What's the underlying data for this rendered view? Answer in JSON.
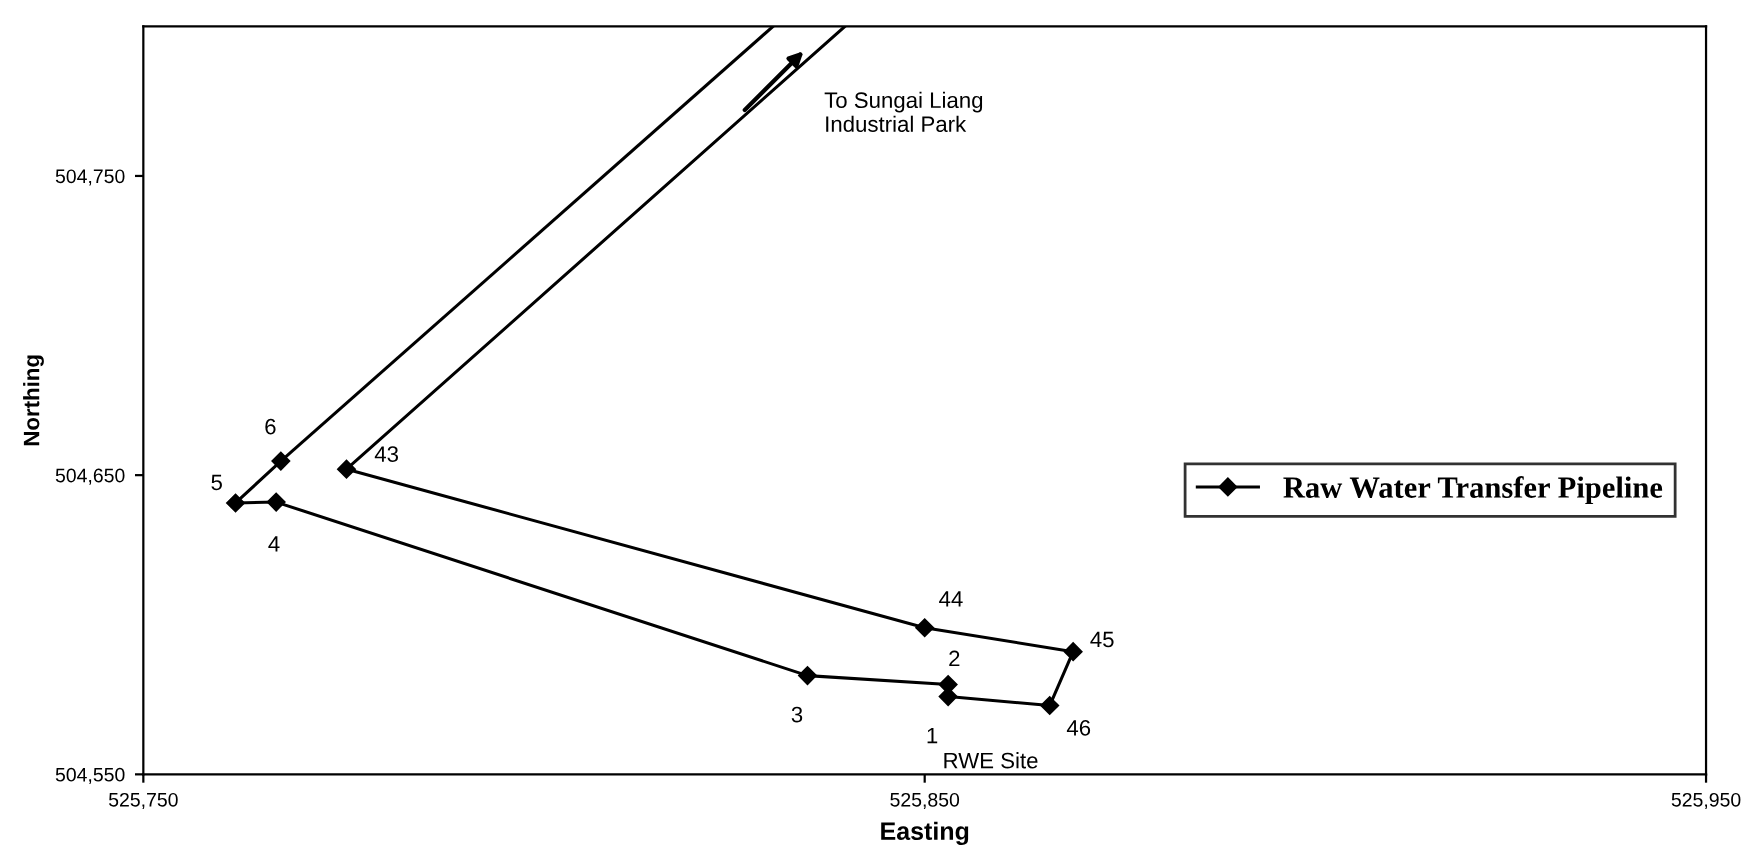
{
  "chart_data": {
    "type": "line",
    "xlabel": "Easting",
    "ylabel": "Northing",
    "series": [
      {
        "name": "Raw Water Transfer Pipeline",
        "color": "#000000",
        "marker": "diamond",
        "x": [
          525767.6,
          525761.8,
          525767,
          525835,
          525853,
          525853,
          525866,
          525869,
          525850,
          525776
        ],
        "values": [
          504654.7,
          504640.7,
          504641,
          504583,
          504580,
          504576,
          504573,
          504591,
          504599,
          504652
        ]
      },
      {
        "color": "#000000",
        "marker": "none",
        "x": [
          525830.6,
          525767.6
        ],
        "values": [
          504800,
          504654.7
        ]
      },
      {
        "color": "#000000",
        "marker": "none",
        "x": [
          525776,
          525839.8
        ],
        "values": [
          504652,
          504800
        ]
      }
    ],
    "annotations": [
      {
        "text": "6",
        "x": 525767.6,
        "y": 504654.7
      },
      {
        "text": "5",
        "x": 525761.8,
        "y": 504640.7
      },
      {
        "text": "4",
        "x": 525767,
        "y": 504641
      },
      {
        "text": "3",
        "x": 525835,
        "y": 504583
      },
      {
        "text": "2",
        "x": 525853,
        "y": 504580
      },
      {
        "text": "1",
        "x": 525853,
        "y": 504576
      },
      {
        "text": "46",
        "x": 525866,
        "y": 504573
      },
      {
        "text": "45",
        "x": 525869,
        "y": 504591
      },
      {
        "text": "44",
        "x": 525850,
        "y": 504599
      },
      {
        "text": "43",
        "x": 525776,
        "y": 504652
      },
      {
        "text": "RWE Site",
        "x": 525853,
        "y": 504576
      },
      {
        "text": "To Sungai Liang\nIndustrial Park",
        "x": 525835,
        "y": 504793
      }
    ],
    "xlim": [
      525750,
      525950
    ],
    "ylim": [
      504550,
      504800
    ],
    "xticks": [
      {
        "value": 525750,
        "label": "525,750"
      },
      {
        "value": 525850,
        "label": "525,850"
      },
      {
        "value": 525950,
        "label": "525,950"
      }
    ],
    "yticks": [
      {
        "value": 504550,
        "label": "504,550"
      },
      {
        "value": 504650,
        "label": "504,650"
      },
      {
        "value": 504750,
        "label": "504,750"
      }
    ],
    "legend": "right",
    "grid": false
  }
}
